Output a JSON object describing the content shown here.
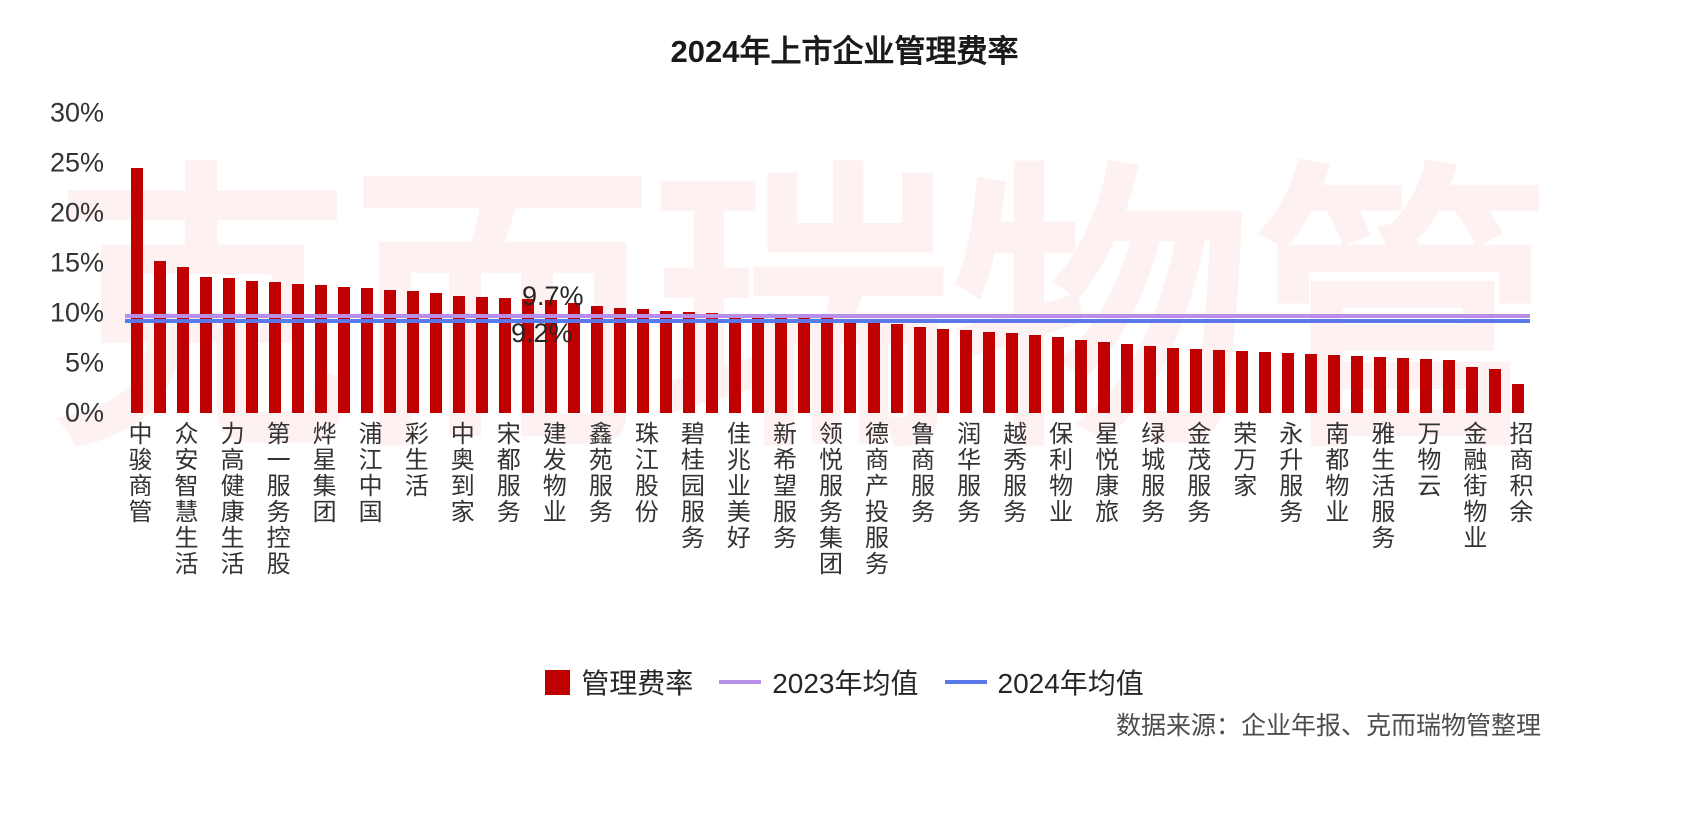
{
  "watermark": "克而瑞物管",
  "source": "数据来源：企业年报、克而瑞物管整理",
  "chart_data": {
    "type": "bar",
    "title": "2024年上市企业管理费率",
    "ylim": [
      0,
      30
    ],
    "y_ticks": [
      "30%",
      "25%",
      "20%",
      "15%",
      "10%",
      "5%",
      "0%"
    ],
    "bar_color": "#C00000",
    "grid": false,
    "legend_position": "bottom",
    "categories": [
      "中骏商管",
      "",
      "众安智慧生活",
      "",
      "力高健康生活",
      "",
      "第一服务控股",
      "",
      "烨星集团",
      "",
      "浦江中国",
      "",
      "彩生活",
      "",
      "中奥到家",
      "",
      "宋都服务",
      "",
      "建发物业",
      "",
      "鑫苑服务",
      "",
      "珠江股份",
      "",
      "碧桂园服务",
      "",
      "佳兆业美好",
      "",
      "新希望服务",
      "",
      "领悦服务集团",
      "",
      "德商产投服务",
      "",
      "鲁商服务",
      "",
      "润华服务",
      "",
      "越秀服务",
      "",
      "保利物业",
      "",
      "星悦康旅",
      "",
      "绿城服务",
      "",
      "金茂服务",
      "",
      "荣万家",
      "",
      "永升服务",
      "",
      "南都物业",
      "",
      "雅生活服务",
      "",
      "万物云",
      "",
      "金融街物业",
      "",
      "招商积余"
    ],
    "values": [
      24.5,
      15.2,
      14.6,
      13.6,
      13.5,
      13.2,
      13.1,
      12.9,
      12.8,
      12.6,
      12.5,
      12.3,
      12.2,
      12.0,
      11.7,
      11.6,
      11.5,
      11.4,
      11.3,
      11.0,
      10.7,
      10.5,
      10.4,
      10.2,
      10.1,
      10.0,
      9.9,
      9.8,
      9.7,
      9.6,
      9.5,
      9.4,
      9.3,
      8.9,
      8.6,
      8.4,
      8.3,
      8.1,
      8.0,
      7.8,
      7.6,
      7.3,
      7.1,
      6.9,
      6.7,
      6.5,
      6.4,
      6.3,
      6.2,
      6.1,
      6.0,
      5.9,
      5.8,
      5.7,
      5.6,
      5.5,
      5.4,
      5.3,
      4.6,
      4.4,
      2.9
    ],
    "lines": [
      {
        "name": "2023年均值",
        "value": 9.7,
        "label": "9.7%",
        "color": "#B78FE8"
      },
      {
        "name": "2024年均值",
        "value": 9.2,
        "label": "9.2%",
        "color": "#5B78E8"
      }
    ],
    "legend": [
      {
        "label": "管理费率",
        "swatch": "square",
        "color": "#C00000"
      },
      {
        "label": "2023年均值",
        "swatch": "line",
        "color": "#B78FE8"
      },
      {
        "label": "2024年均值",
        "swatch": "line",
        "color": "#5B78E8"
      }
    ]
  }
}
